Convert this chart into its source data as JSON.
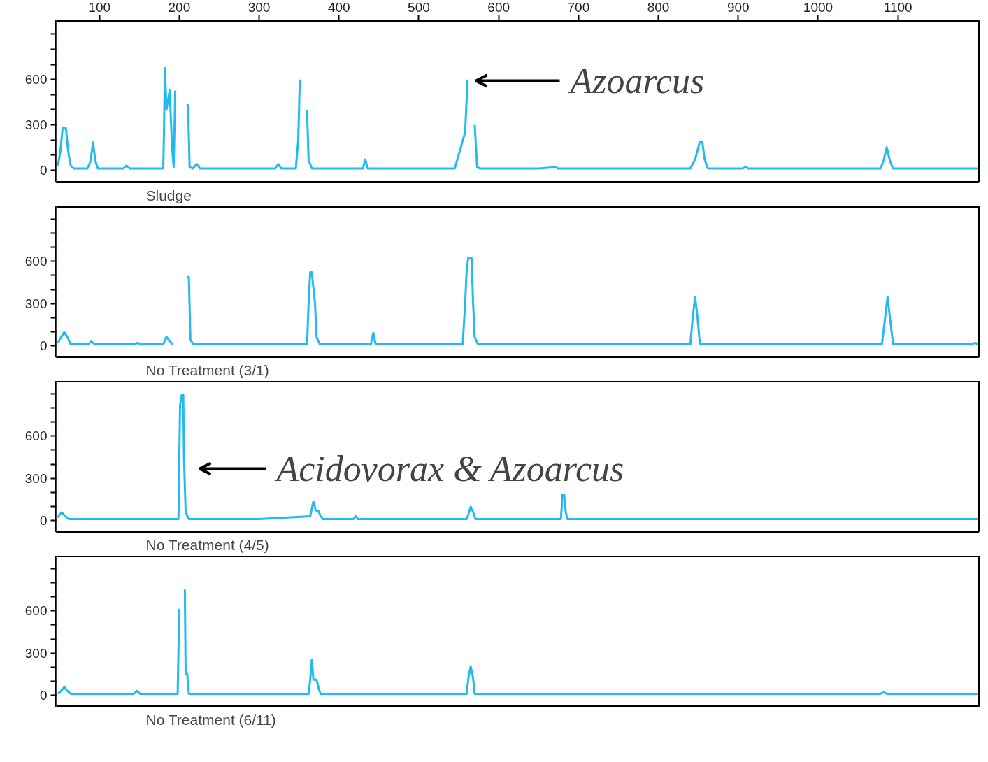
{
  "chart_data": [
    {
      "type": "line",
      "title": "Sludge",
      "xlim": [
        46,
        1201
      ],
      "ylim": [
        -80,
        990
      ],
      "xticks": [
        100,
        200,
        300,
        400,
        500,
        600,
        700,
        800,
        900,
        1000,
        1100
      ],
      "yticks": [
        0,
        {
          "value": 100,
          "label": null
        },
        {
          "value": 200,
          "label": null
        },
        300,
        {
          "value": 400,
          "label": null
        },
        {
          "value": 500,
          "label": null
        },
        600,
        {
          "value": 700,
          "label": null
        },
        {
          "value": 800,
          "label": null
        },
        {
          "value": 900,
          "label": null
        }
      ],
      "annotations": [
        "Azoarcus"
      ],
      "series": [
        {
          "color": "#22bbf0",
          "x": [
            48,
            51,
            54,
            58,
            61,
            64,
            68,
            85,
            89,
            92,
            95,
            98,
            130,
            134,
            138,
            180,
            181,
            182,
            184,
            188,
            191,
            193,
            195,
            197,
            208,
            209,
            211,
            213,
            217,
            222,
            226,
            320,
            324,
            328,
            346,
            349,
            351,
            353,
            358,
            360,
            362,
            364,
            366,
            430,
            433,
            436,
            545,
            558,
            561,
            563,
            568,
            570,
            573,
            577,
            650,
            672,
            674,
            840,
            846,
            850,
            852,
            855,
            858,
            862,
            905,
            909,
            913,
            1078,
            1082,
            1086,
            1090,
            1094,
            1200
          ],
          "values": [
            30,
            120,
            280,
            280,
            120,
            30,
            10,
            10,
            60,
            184,
            60,
            10,
            10,
            30,
            10,
            10,
            300,
            675,
            400,
            527,
            150,
            20,
            527,
            null,
            null,
            430,
            430,
            20,
            10,
            40,
            10,
            10,
            40,
            10,
            10,
            200,
            600,
            null,
            null,
            400,
            60,
            40,
            10,
            10,
            70,
            10,
            10,
            250,
            600,
            null,
            null,
            300,
            20,
            10,
            10,
            20,
            10,
            10,
            70,
            150,
            188,
            188,
            70,
            10,
            10,
            20,
            10,
            10,
            60,
            151,
            60,
            10,
            10
          ]
        }
      ]
    },
    {
      "type": "line",
      "title": "No Treatment (3/1)",
      "tick_labels": "y",
      "xlim": [
        46,
        1201
      ],
      "ylim": [
        -80,
        990
      ],
      "yticks": [
        0,
        {
          "value": 100,
          "label": null
        },
        {
          "value": 200,
          "label": null
        },
        300,
        {
          "value": 400,
          "label": null
        },
        {
          "value": 500,
          "label": null
        },
        600,
        {
          "value": 700,
          "label": null
        },
        {
          "value": 800,
          "label": null
        },
        {
          "value": 900,
          "label": null
        }
      ],
      "series": [
        {
          "color": "#22bbf0",
          "x": [
            48,
            52,
            56,
            60,
            64,
            86,
            90,
            94,
            144,
            148,
            152,
            180,
            184,
            188,
            192,
            196,
            209,
            210,
            212,
            214,
            218,
            360,
            362,
            364,
            366,
            370,
            372,
            376,
            440,
            443,
            446,
            449,
            555,
            558,
            560,
            562,
            566,
            568,
            570,
            574,
            840,
            843,
            846,
            849,
            852,
            1080,
            1084,
            1087,
            1090,
            1094,
            1192,
            1197,
            1200
          ],
          "values": [
            20,
            60,
            96,
            60,
            10,
            10,
            30,
            10,
            10,
            20,
            10,
            10,
            64,
            30,
            10,
            null,
            null,
            489,
            489,
            40,
            10,
            10,
            300,
            522,
            522,
            300,
            60,
            10,
            10,
            91,
            10,
            10,
            10,
            300,
            545,
            626,
            626,
            300,
            60,
            10,
            10,
            200,
            347,
            200,
            10,
            10,
            200,
            347,
            200,
            10,
            10,
            20,
            10
          ]
        }
      ]
    },
    {
      "type": "line",
      "title": "No Treatment (4/5)",
      "tick_labels": "y",
      "xlim": [
        46,
        1201
      ],
      "ylim": [
        -80,
        990
      ],
      "yticks": [
        0,
        {
          "value": 100,
          "label": null
        },
        {
          "value": 200,
          "label": null
        },
        300,
        {
          "value": 400,
          "label": null
        },
        {
          "value": 500,
          "label": null
        },
        600,
        {
          "value": 700,
          "label": null
        },
        {
          "value": 800,
          "label": null
        },
        {
          "value": 900,
          "label": null
        }
      ],
      "annotations": [
        "Acidovorax & Azoarcus"
      ],
      "series": [
        {
          "color": "#22bbf0",
          "x": [
            48,
            50,
            53,
            57,
            62,
            199,
            200,
            201,
            203,
            205,
            206,
            208,
            212,
            300,
            364,
            368,
            371,
            374,
            377,
            380,
            418,
            421,
            424,
            560,
            563,
            565,
            568,
            571,
            678,
            680,
            682,
            684,
            686,
            1200
          ],
          "values": [
            20,
            40,
            58,
            30,
            10,
            10,
            430,
            820,
            893,
            893,
            430,
            60,
            10,
            10,
            30,
            135,
            70,
            70,
            30,
            10,
            10,
            30,
            10,
            10,
            60,
            97,
            60,
            10,
            10,
            184,
            184,
            60,
            10,
            10
          ]
        }
      ]
    },
    {
      "type": "line",
      "title": "No Treatment (6/11)",
      "tick_labels": "y",
      "xlim": [
        46,
        1201
      ],
      "ylim": [
        -80,
        990
      ],
      "yticks": [
        0,
        {
          "value": 100,
          "label": null
        },
        {
          "value": 200,
          "label": null
        },
        300,
        {
          "value": 400,
          "label": null
        },
        {
          "value": 500,
          "label": null
        },
        600,
        {
          "value": 700,
          "label": null
        },
        {
          "value": 800,
          "label": null
        },
        {
          "value": 900,
          "label": null
        }
      ],
      "series": [
        {
          "color": "#22bbf0",
          "x": [
            48,
            52,
            56,
            60,
            64,
            143,
            147,
            151,
            198,
            200,
            202,
            205,
            207,
            208,
            210,
            212,
            362,
            364,
            366,
            368,
            370,
            372,
            375,
            377,
            560,
            562,
            565,
            568,
            570,
            1078,
            1082,
            1086,
            1200
          ],
          "values": [
            10,
            30,
            58,
            30,
            10,
            10,
            30,
            10,
            10,
            615,
            null,
            null,
            752,
            150,
            150,
            10,
            10,
            110,
            254,
            110,
            110,
            110,
            40,
            10,
            10,
            120,
            206,
            120,
            10,
            10,
            20,
            10,
            10
          ]
        }
      ]
    }
  ]
}
